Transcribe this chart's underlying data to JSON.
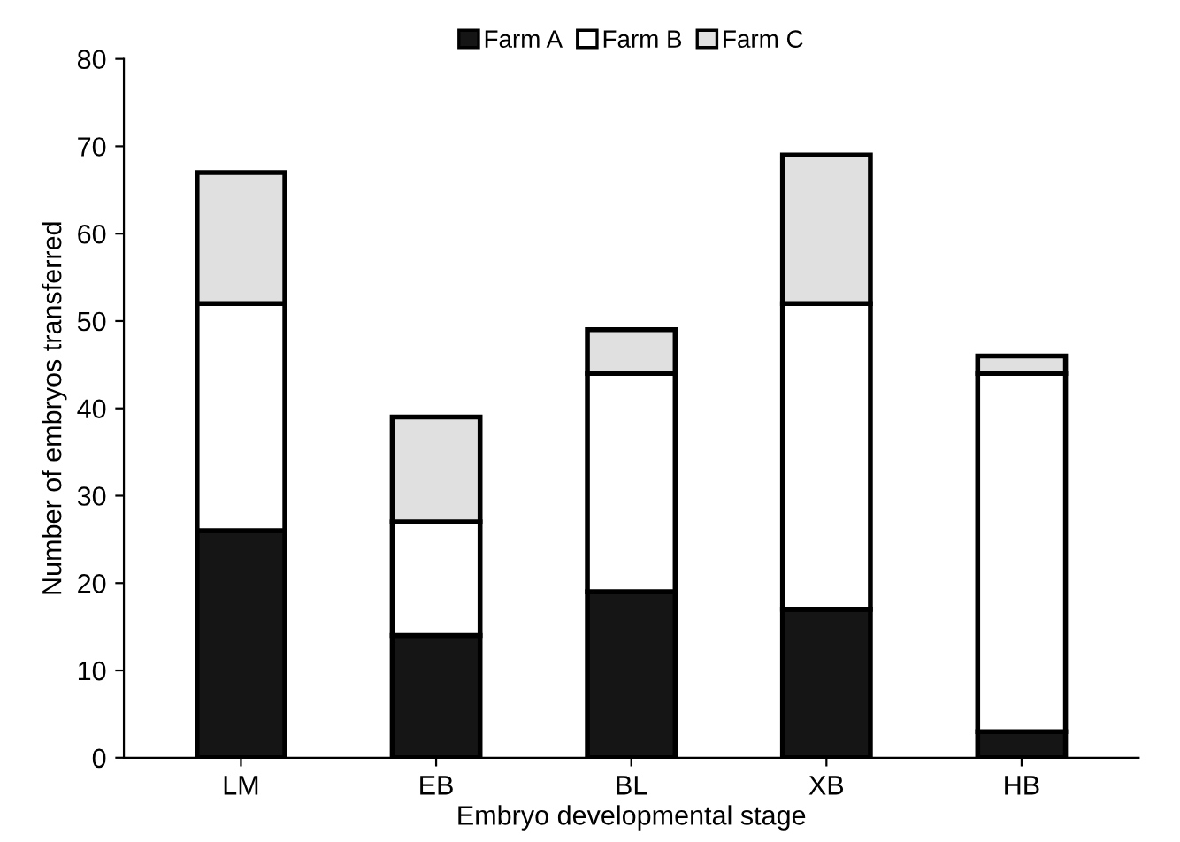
{
  "chart_data": {
    "type": "bar",
    "stacked": true,
    "xlabel": "Embryo developmental stage",
    "ylabel": "Number of embryos transferred",
    "categories": [
      "LM",
      "EB",
      "BL",
      "XB",
      "HB"
    ],
    "series": [
      {
        "name": "Farm A",
        "color": "#151515",
        "values": [
          26,
          14,
          19,
          17,
          3
        ]
      },
      {
        "name": "Farm B",
        "color": "#ffffff",
        "values": [
          26,
          13,
          25,
          35,
          41
        ]
      },
      {
        "name": "Farm C",
        "color": "#e0e0e0",
        "values": [
          15,
          12,
          5,
          17,
          2
        ]
      }
    ],
    "ylim": [
      0,
      80
    ],
    "yticks": [
      0,
      10,
      20,
      30,
      40,
      50,
      60,
      70,
      80
    ],
    "grid": false,
    "legend": "top"
  }
}
